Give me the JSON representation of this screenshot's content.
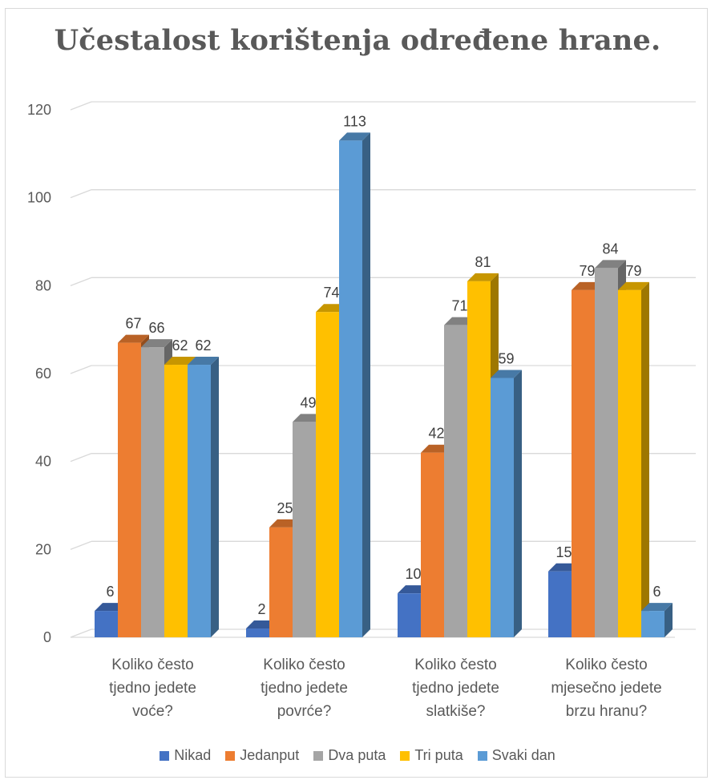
{
  "chart_data": {
    "type": "bar",
    "style": "3d-clustered-column",
    "title": "Učestalost korištenja određene hrane.",
    "xlabel": "",
    "ylabel": "",
    "ylim": [
      0,
      120
    ],
    "yticks": [
      0,
      20,
      40,
      60,
      80,
      100,
      120
    ],
    "grid": true,
    "legend_position": "bottom",
    "categories": [
      [
        "Koliko često",
        "tjedno jedete",
        "voće?"
      ],
      [
        "Koliko često",
        "tjedno jedete",
        "povrće?"
      ],
      [
        "Koliko često",
        "tjedno jedete",
        "slatkiše?"
      ],
      [
        "Koliko često",
        "mjesečno jedete",
        "brzu hranu?"
      ]
    ],
    "series": [
      {
        "name": "Nikad",
        "color": "#4472C4",
        "values": [
          6,
          2,
          10,
          15
        ]
      },
      {
        "name": "Jedanput",
        "color": "#ED7D31",
        "values": [
          67,
          25,
          42,
          79
        ]
      },
      {
        "name": "Dva puta",
        "color": "#A5A5A5",
        "values": [
          66,
          49,
          71,
          84
        ]
      },
      {
        "name": "Tri puta",
        "color": "#FFC000",
        "values": [
          62,
          74,
          81,
          79
        ]
      },
      {
        "name": "Svaki dan",
        "color": "#5B9BD5",
        "values": [
          62,
          113,
          59,
          6
        ]
      }
    ]
  }
}
